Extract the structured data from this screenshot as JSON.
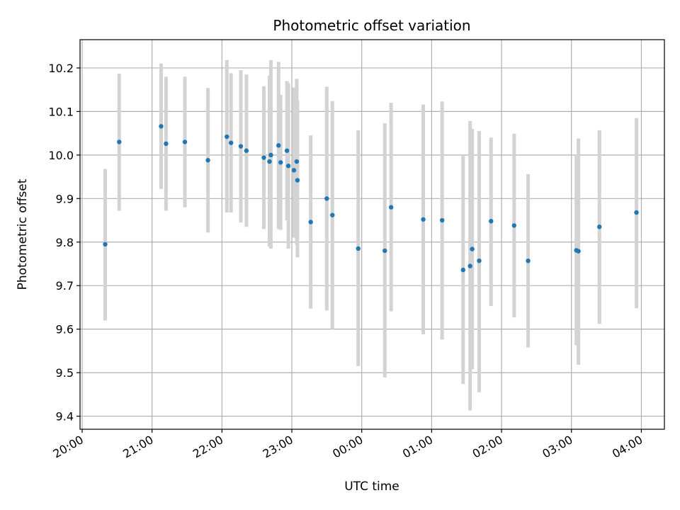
{
  "chart_data": {
    "type": "scatter",
    "title": "Photometric offset variation",
    "xlabel": "UTC time",
    "ylabel": "Photometric offset",
    "x_unit": "hours",
    "xlim": [
      19.97,
      28.33
    ],
    "ylim": [
      9.37,
      10.265
    ],
    "grid": true,
    "x_ticks": [
      {
        "value": 20,
        "label": "20:00"
      },
      {
        "value": 21,
        "label": "21:00"
      },
      {
        "value": 22,
        "label": "22:00"
      },
      {
        "value": 23,
        "label": "23:00"
      },
      {
        "value": 24,
        "label": "00:00"
      },
      {
        "value": 25,
        "label": "01:00"
      },
      {
        "value": 26,
        "label": "02:00"
      },
      {
        "value": 27,
        "label": "03:00"
      },
      {
        "value": 28,
        "label": "04:00"
      }
    ],
    "y_ticks": [
      {
        "value": 9.4,
        "label": "9.4"
      },
      {
        "value": 9.5,
        "label": "9.5"
      },
      {
        "value": 9.6,
        "label": "9.6"
      },
      {
        "value": 9.7,
        "label": "9.7"
      },
      {
        "value": 9.8,
        "label": "9.8"
      },
      {
        "value": 9.9,
        "label": "9.9"
      },
      {
        "value": 10.0,
        "label": "10.0"
      },
      {
        "value": 10.1,
        "label": "10.1"
      },
      {
        "value": 10.2,
        "label": "10.2"
      }
    ],
    "colors": {
      "point": "#1f77b4",
      "errorbar": "#d3d3d3",
      "grid": "#b0b0b0"
    },
    "points": [
      {
        "x": 20.33,
        "y": 9.795,
        "lo": 9.62,
        "hi": 9.968
      },
      {
        "x": 20.53,
        "y": 10.03,
        "lo": 9.872,
        "hi": 10.187
      },
      {
        "x": 21.13,
        "y": 10.066,
        "lo": 9.922,
        "hi": 10.21
      },
      {
        "x": 21.2,
        "y": 10.026,
        "lo": 9.872,
        "hi": 10.18
      },
      {
        "x": 21.47,
        "y": 10.03,
        "lo": 9.88,
        "hi": 10.18
      },
      {
        "x": 21.8,
        "y": 9.988,
        "lo": 9.822,
        "hi": 10.154
      },
      {
        "x": 22.07,
        "y": 10.042,
        "lo": 9.868,
        "hi": 10.218
      },
      {
        "x": 22.13,
        "y": 10.028,
        "lo": 9.868,
        "hi": 10.188
      },
      {
        "x": 22.27,
        "y": 10.02,
        "lo": 9.845,
        "hi": 10.195
      },
      {
        "x": 22.35,
        "y": 10.01,
        "lo": 9.835,
        "hi": 10.185
      },
      {
        "x": 22.6,
        "y": 9.994,
        "lo": 9.83,
        "hi": 10.158
      },
      {
        "x": 22.68,
        "y": 9.985,
        "lo": 9.79,
        "hi": 10.182
      },
      {
        "x": 22.7,
        "y": 10.0,
        "lo": 9.785,
        "hi": 10.218
      },
      {
        "x": 22.81,
        "y": 10.022,
        "lo": 9.83,
        "hi": 10.214
      },
      {
        "x": 22.84,
        "y": 9.983,
        "lo": 9.828,
        "hi": 10.138
      },
      {
        "x": 22.93,
        "y": 10.01,
        "lo": 9.85,
        "hi": 10.17
      },
      {
        "x": 22.95,
        "y": 9.975,
        "lo": 9.785,
        "hi": 10.165
      },
      {
        "x": 23.03,
        "y": 9.965,
        "lo": 9.81,
        "hi": 10.155
      },
      {
        "x": 23.07,
        "y": 9.985,
        "lo": 9.795,
        "hi": 10.175
      },
      {
        "x": 23.08,
        "y": 9.942,
        "lo": 9.765,
        "hi": 10.125
      },
      {
        "x": 23.27,
        "y": 9.846,
        "lo": 9.647,
        "hi": 10.045
      },
      {
        "x": 23.5,
        "y": 9.9,
        "lo": 9.643,
        "hi": 10.157
      },
      {
        "x": 23.58,
        "y": 9.862,
        "lo": 9.6,
        "hi": 10.124
      },
      {
        "x": 23.95,
        "y": 9.785,
        "lo": 9.515,
        "hi": 10.057
      },
      {
        "x": 24.33,
        "y": 9.78,
        "lo": 9.489,
        "hi": 10.073
      },
      {
        "x": 24.42,
        "y": 9.88,
        "lo": 9.641,
        "hi": 10.12
      },
      {
        "x": 24.88,
        "y": 9.852,
        "lo": 9.588,
        "hi": 10.116
      },
      {
        "x": 25.15,
        "y": 9.85,
        "lo": 9.576,
        "hi": 10.123
      },
      {
        "x": 25.45,
        "y": 9.736,
        "lo": 9.474,
        "hi": 9.998
      },
      {
        "x": 25.55,
        "y": 9.745,
        "lo": 9.413,
        "hi": 10.078
      },
      {
        "x": 25.58,
        "y": 9.784,
        "lo": 9.508,
        "hi": 10.06
      },
      {
        "x": 25.68,
        "y": 9.757,
        "lo": 9.455,
        "hi": 10.055
      },
      {
        "x": 25.85,
        "y": 9.848,
        "lo": 9.653,
        "hi": 10.04
      },
      {
        "x": 26.18,
        "y": 9.838,
        "lo": 9.627,
        "hi": 10.049
      },
      {
        "x": 26.38,
        "y": 9.757,
        "lo": 9.558,
        "hi": 9.956
      },
      {
        "x": 27.07,
        "y": 9.781,
        "lo": 9.563,
        "hi": 9.998
      },
      {
        "x": 27.1,
        "y": 9.779,
        "lo": 9.518,
        "hi": 10.038
      },
      {
        "x": 27.4,
        "y": 9.835,
        "lo": 9.612,
        "hi": 10.057
      },
      {
        "x": 27.93,
        "y": 9.868,
        "lo": 9.648,
        "hi": 10.085
      }
    ]
  }
}
